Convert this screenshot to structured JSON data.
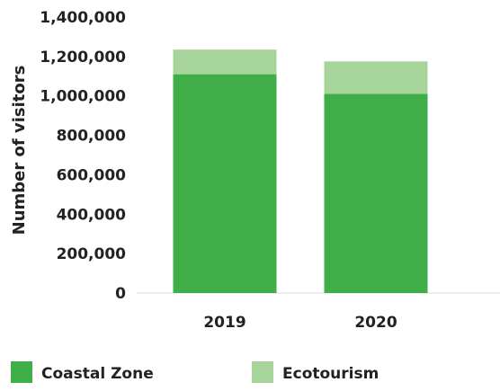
{
  "chart_data": {
    "type": "bar",
    "stacked": true,
    "categories": [
      "2019",
      "2020"
    ],
    "series": [
      {
        "name": "Coastal Zone",
        "values": [
          1110000,
          1010000
        ],
        "color": "#3fae49"
      },
      {
        "name": "Ecotourism",
        "values": [
          125000,
          165000
        ],
        "color": "#a6d49b"
      }
    ],
    "ylabel": "Number of visitors",
    "xlabel": "",
    "ylim": [
      0,
      1400000
    ],
    "yticks": [
      "0",
      "200,000",
      "400,000",
      "600,000",
      "800,000",
      "1,000,000",
      "1,200,000",
      "1,400,000"
    ],
    "ytick_values": [
      0,
      200000,
      400000,
      600000,
      800000,
      1000000,
      1200000,
      1400000
    ],
    "grid": false,
    "legend_position": "bottom"
  }
}
